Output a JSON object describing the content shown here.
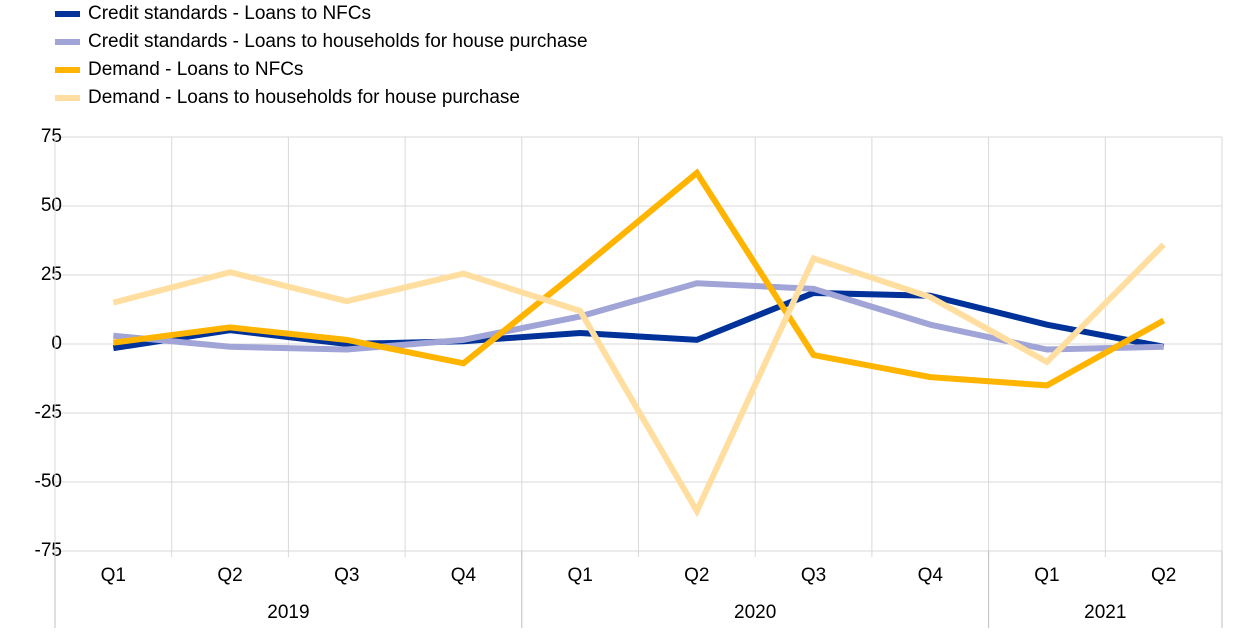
{
  "chart_data": {
    "type": "line",
    "category_groups": [
      {
        "label": "2019",
        "categories": [
          "Q1",
          "Q2",
          "Q3",
          "Q4"
        ]
      },
      {
        "label": "2020",
        "categories": [
          "Q1",
          "Q2",
          "Q3",
          "Q4"
        ]
      },
      {
        "label": "2021",
        "categories": [
          "Q1",
          "Q2"
        ]
      }
    ],
    "series": [
      {
        "name": "Credit standards - Loans to NFCs",
        "color": "#003299",
        "values": [
          -1.5,
          5,
          0,
          1,
          4,
          1.5,
          18.5,
          17.5,
          7,
          -1
        ]
      },
      {
        "name": "Credit standards - Loans to households for house purchase",
        "color": "#a0a4d6",
        "values": [
          3,
          -1,
          -2,
          1.5,
          10,
          22,
          20,
          7,
          -2,
          -1
        ]
      },
      {
        "name": "Demand - Loans to NFCs",
        "color": "#ffb400",
        "values": [
          0.5,
          6,
          1.5,
          -7,
          27,
          62,
          -4,
          -12,
          -15,
          8.5
        ]
      },
      {
        "name": "Demand - Loans to households for house purchase",
        "color": "#ffdea0",
        "values": [
          15,
          26,
          15.5,
          25.5,
          12,
          -60.5,
          31,
          17,
          -6.5,
          36
        ]
      }
    ],
    "ylim": [
      -75,
      75
    ],
    "yticks": [
      -75,
      -50,
      -25,
      0,
      25,
      50,
      75
    ],
    "grid": true,
    "legend": "top-left"
  }
}
